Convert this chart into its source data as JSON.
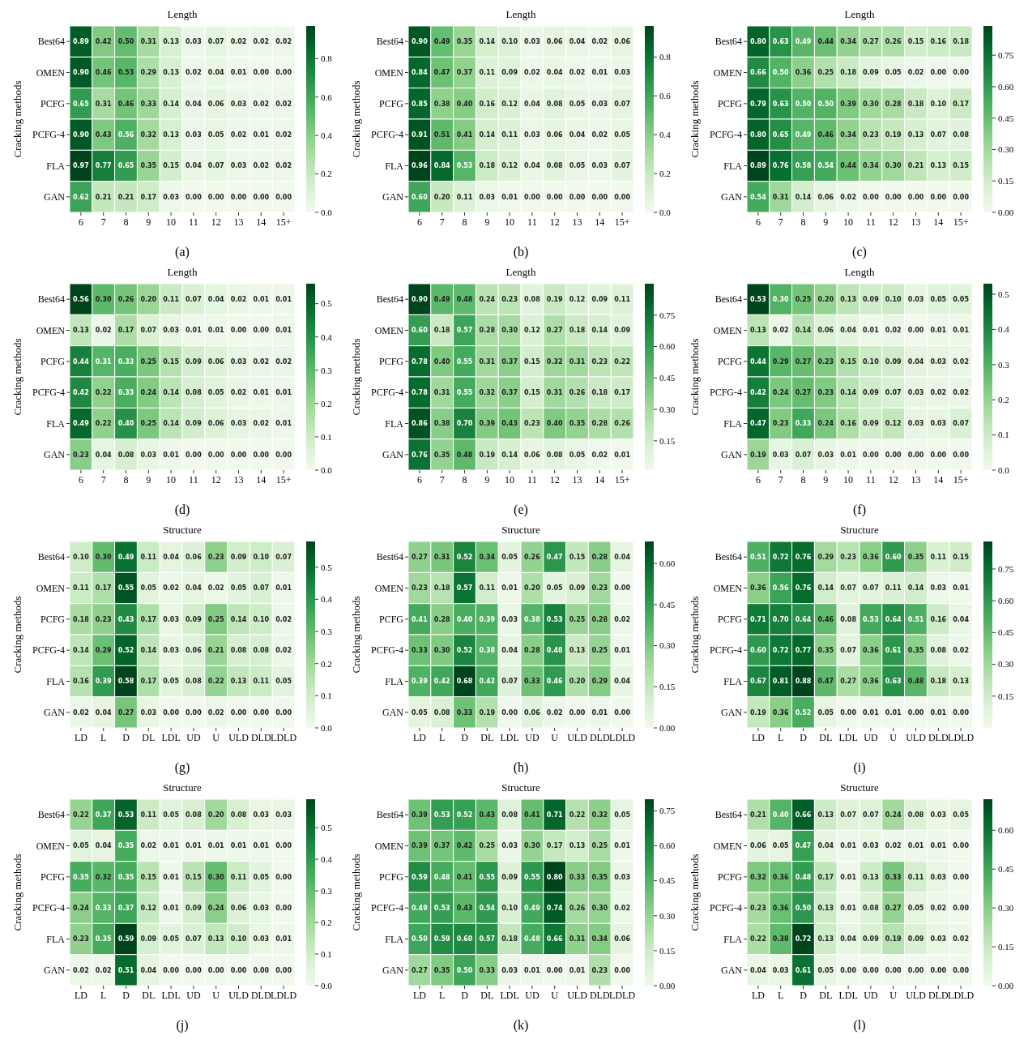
{
  "chart_data": [
    {
      "type": "heatmap",
      "title": "Length",
      "ylabel": "Cracking methods",
      "annotations": [
        "(a)"
      ],
      "data_labels": true,
      "categories": [
        "6",
        "7",
        "8",
        "9",
        "10",
        "11",
        "12",
        "13",
        "14",
        "15+"
      ],
      "y_categories": [
        "Best64",
        "OMEN",
        "PCFG",
        "PCFG-4",
        "FLA",
        "GAN"
      ],
      "clim": [
        0,
        0.97
      ],
      "cticks": [
        {
          "value": 0,
          "label": "0.0"
        },
        0.2,
        0.4,
        0.6,
        0.8
      ],
      "cells": [
        [
          0.89,
          0.42,
          0.5,
          0.31,
          0.13,
          0.03,
          0.07,
          0.02,
          0.02,
          0.02
        ],
        [
          0.9,
          0.46,
          0.53,
          0.29,
          0.13,
          0.02,
          0.04,
          0.01,
          0.0,
          0.0
        ],
        [
          0.65,
          0.31,
          0.46,
          0.33,
          0.14,
          0.04,
          0.06,
          0.03,
          0.02,
          0.02
        ],
        [
          0.9,
          0.43,
          0.56,
          0.32,
          0.13,
          0.03,
          0.05,
          0.02,
          0.01,
          0.02
        ],
        [
          0.97,
          0.77,
          0.65,
          0.35,
          0.15,
          0.04,
          0.07,
          0.03,
          0.02,
          0.02
        ],
        [
          0.62,
          0.21,
          0.21,
          0.17,
          0.03,
          0.0,
          0.0,
          0.0,
          0.0,
          0.0
        ]
      ],
      "cell_labels": [
        [
          "0.89",
          "0.42",
          "0.50",
          "0.31",
          "0.13",
          "0.03",
          "0.07",
          "0.02",
          "0.02",
          "0.02"
        ],
        [
          "0.90",
          "0.46",
          "0.53",
          "0.29",
          "0.13",
          "0.02",
          "0.04",
          "0.01",
          "0.00",
          "0.00"
        ],
        [
          "0.65",
          "0.31",
          "0.46",
          "0.33",
          "0.14",
          "0.04",
          "0.06",
          "0.03",
          "0.02",
          "0.02"
        ],
        [
          "0.90",
          "0.43",
          "0.56",
          "0.32",
          "0.13",
          "0.03",
          "0.05",
          "0.02",
          "0.01",
          "0.02"
        ],
        [
          "0.97",
          "0.77",
          "0.65",
          "0.35",
          "0.15",
          "0.04",
          "0.07",
          "0.03",
          "0.02",
          "0.02"
        ],
        [
          "0.62",
          "0.21",
          "0.21",
          "0.17",
          "0.03",
          "0.00",
          "0.00",
          "0.00",
          "0.00",
          "0.00"
        ]
      ]
    },
    {
      "type": "heatmap",
      "title": "Length",
      "ylabel": "Cracking methods",
      "annotations": [
        "(b)"
      ],
      "data_labels": true,
      "categories": [
        "6",
        "7",
        "8",
        "9",
        "10",
        "11",
        "12",
        "13",
        "14",
        "15+"
      ],
      "y_categories": [
        "Best64",
        "OMEN",
        "PCFG",
        "PCFG-4",
        "FLA",
        "GAN"
      ],
      "clim": [
        0,
        0.96
      ],
      "cticks": [
        {
          "value": 0,
          "label": "0.0"
        },
        0.2,
        0.4,
        0.6,
        0.8
      ],
      "cells": [
        [
          0.9,
          0.49,
          0.35,
          0.14,
          0.1,
          0.03,
          0.06,
          0.04,
          0.02,
          0.06
        ],
        [
          0.84,
          0.47,
          0.37,
          0.11,
          0.09,
          0.02,
          0.04,
          0.02,
          0.01,
          0.03
        ],
        [
          0.85,
          0.38,
          0.4,
          0.16,
          0.12,
          0.04,
          0.08,
          0.05,
          0.03,
          0.07
        ],
        [
          0.91,
          0.51,
          0.41,
          0.14,
          0.11,
          0.03,
          0.06,
          0.04,
          0.02,
          0.05
        ],
        [
          0.96,
          0.84,
          0.53,
          0.18,
          0.12,
          0.04,
          0.08,
          0.05,
          0.03,
          0.07
        ],
        [
          0.6,
          0.2,
          0.11,
          0.03,
          0.01,
          0.0,
          0.0,
          0.0,
          0.0,
          0.0
        ]
      ],
      "cell_labels": [
        [
          "0.90",
          "0.49",
          "0.35",
          "0.14",
          "0.10",
          "0.03",
          "0.06",
          "0.04",
          "0.02",
          "0.06"
        ],
        [
          "0.84",
          "0.47",
          "0.37",
          "0.11",
          "0.09",
          "0.02",
          "0.04",
          "0.02",
          "0.01",
          "0.03"
        ],
        [
          "0.85",
          "0.38",
          "0.40",
          "0.16",
          "0.12",
          "0.04",
          "0.08",
          "0.05",
          "0.03",
          "0.07"
        ],
        [
          "0.91",
          "0.51",
          "0.41",
          "0.14",
          "0.11",
          "0.03",
          "0.06",
          "0.04",
          "0.02",
          "0.05"
        ],
        [
          "0.96",
          "0.84",
          "0.53",
          "0.18",
          "0.12",
          "0.04",
          "0.08",
          "0.05",
          "0.03",
          "0.07"
        ],
        [
          "0.60",
          "0.20",
          "0.11",
          "0.03",
          "0.01",
          "0.00",
          "0.00",
          "0.00",
          "0.00",
          "0.00"
        ]
      ]
    },
    {
      "type": "heatmap",
      "title": "Length",
      "ylabel": "Cracking methods",
      "annotations": [
        "(c)"
      ],
      "data_labels": true,
      "categories": [
        "6",
        "7",
        "8",
        "9",
        "10",
        "11",
        "12",
        "13",
        "14",
        "15+"
      ],
      "y_categories": [
        "Best64",
        "OMEN",
        "PCFG",
        "PCFG-4",
        "FLA",
        "GAN"
      ],
      "clim": [
        0,
        0.89
      ],
      "cticks": [
        {
          "value": 0,
          "label": "0.00"
        },
        0.15,
        {
          "value": 0.3,
          "label": "0.30"
        },
        0.45,
        {
          "value": 0.6,
          "label": "0.60"
        },
        0.75
      ],
      "cells": [
        [
          0.8,
          0.63,
          0.49,
          0.44,
          0.34,
          0.27,
          0.26,
          0.15,
          0.16,
          0.18
        ],
        [
          0.66,
          0.5,
          0.36,
          0.25,
          0.18,
          0.09,
          0.05,
          0.02,
          0.0,
          0.0
        ],
        [
          0.79,
          0.63,
          0.5,
          0.5,
          0.39,
          0.3,
          0.28,
          0.18,
          0.1,
          0.17
        ],
        [
          0.8,
          0.65,
          0.49,
          0.46,
          0.34,
          0.23,
          0.19,
          0.13,
          0.07,
          0.08
        ],
        [
          0.89,
          0.76,
          0.58,
          0.54,
          0.44,
          0.34,
          0.3,
          0.21,
          0.13,
          0.15
        ],
        [
          0.54,
          0.31,
          0.14,
          0.06,
          0.02,
          0.0,
          0.0,
          0.0,
          0.0,
          0.0
        ]
      ],
      "cell_labels": [
        [
          "0.80",
          "0.63",
          "0.49",
          "0.44",
          "0.34",
          "0.27",
          "0.26",
          "0.15",
          "0.16",
          "0.18"
        ],
        [
          "0.66",
          "0.50",
          "0.36",
          "0.25",
          "0.18",
          "0.09",
          "0.05",
          "0.02",
          "0.00",
          "0.00"
        ],
        [
          "0.79",
          "0.63",
          "0.50",
          "0.50",
          "0.39",
          "0.30",
          "0.28",
          "0.18",
          "0.10",
          "0.17"
        ],
        [
          "0.80",
          "0.65",
          "0.49",
          "0.46",
          "0.34",
          "0.23",
          "0.19",
          "0.13",
          "0.07",
          "0.08"
        ],
        [
          "0.89",
          "0.76",
          "0.58",
          "0.54",
          "0.44",
          "0.34",
          "0.30",
          "0.21",
          "0.13",
          "0.15"
        ],
        [
          "0.54",
          "0.31",
          "0.14",
          "0.06",
          "0.02",
          "0.00",
          "0.00",
          "0.00",
          "0.00",
          "0.00"
        ]
      ]
    },
    {
      "type": "heatmap",
      "title": "Length",
      "ylabel": "Cracking methods",
      "annotations": [
        "(d)"
      ],
      "data_labels": true,
      "categories": [
        "6",
        "7",
        "8",
        "9",
        "10",
        "11",
        "12",
        "13",
        "14",
        "15+"
      ],
      "y_categories": [
        "Best64",
        "OMEN",
        "PCFG",
        "PCFG-4",
        "FLA",
        "GAN"
      ],
      "clim": [
        0,
        0.56
      ],
      "cticks": [
        {
          "value": 0,
          "label": "0.0"
        },
        0.1,
        0.2,
        0.3,
        0.4,
        0.5
      ],
      "cells": [
        [
          0.56,
          0.3,
          0.26,
          0.2,
          0.11,
          0.07,
          0.04,
          0.02,
          0.01,
          0.01
        ],
        [
          0.13,
          0.02,
          0.17,
          0.07,
          0.03,
          0.01,
          0.01,
          0.0,
          0.0,
          0.01
        ],
        [
          0.44,
          0.31,
          0.33,
          0.25,
          0.15,
          0.09,
          0.06,
          0.03,
          0.02,
          0.02
        ],
        [
          0.42,
          0.22,
          0.33,
          0.24,
          0.14,
          0.08,
          0.05,
          0.02,
          0.01,
          0.01
        ],
        [
          0.49,
          0.22,
          0.4,
          0.25,
          0.14,
          0.09,
          0.06,
          0.03,
          0.02,
          0.01
        ],
        [
          0.23,
          0.04,
          0.08,
          0.03,
          0.01,
          0.0,
          0.0,
          0.0,
          0.0,
          0.0
        ]
      ],
      "cell_labels": [
        [
          "0.56",
          "0.30",
          "0.26",
          "0.20",
          "0.11",
          "0.07",
          "0.04",
          "0.02",
          "0.01",
          "0.01"
        ],
        [
          "0.13",
          "0.02",
          "0.17",
          "0.07",
          "0.03",
          "0.01",
          "0.01",
          "0.00",
          "0.00",
          "0.01"
        ],
        [
          "0.44",
          "0.31",
          "0.33",
          "0.25",
          "0.15",
          "0.09",
          "0.06",
          "0.03",
          "0.02",
          "0.02"
        ],
        [
          "0.42",
          "0.22",
          "0.33",
          "0.24",
          "0.14",
          "0.08",
          "0.05",
          "0.02",
          "0.01",
          "0.01"
        ],
        [
          "0.49",
          "0.22",
          "0.40",
          "0.25",
          "0.14",
          "0.09",
          "0.06",
          "0.03",
          "0.02",
          "0.01"
        ],
        [
          "0.23",
          "0.04",
          "0.08",
          "0.03",
          "0.01",
          "0.00",
          "0.00",
          "0.00",
          "0.00",
          "0.00"
        ]
      ]
    },
    {
      "type": "heatmap",
      "title": "Length",
      "ylabel": "Cracking methods",
      "annotations": [
        "(e)"
      ],
      "data_labels": true,
      "categories": [
        "6",
        "7",
        "8",
        "9",
        "10",
        "11",
        "12",
        "13",
        "14",
        "15+"
      ],
      "y_categories": [
        "Best64",
        "OMEN",
        "PCFG",
        "PCFG-4",
        "FLA",
        "GAN"
      ],
      "clim": [
        0.01,
        0.9
      ],
      "cticks": [
        0.15,
        {
          "value": 0.3,
          "label": "0.30"
        },
        0.45,
        {
          "value": 0.6,
          "label": "0.60"
        },
        0.75
      ],
      "cells": [
        [
          0.9,
          0.49,
          0.48,
          0.24,
          0.23,
          0.08,
          0.19,
          0.12,
          0.09,
          0.11
        ],
        [
          0.6,
          0.18,
          0.57,
          0.28,
          0.3,
          0.12,
          0.27,
          0.18,
          0.14,
          0.09
        ],
        [
          0.78,
          0.4,
          0.55,
          0.31,
          0.37,
          0.15,
          0.32,
          0.31,
          0.23,
          0.22
        ],
        [
          0.78,
          0.31,
          0.55,
          0.32,
          0.37,
          0.15,
          0.31,
          0.26,
          0.18,
          0.17
        ],
        [
          0.86,
          0.38,
          0.7,
          0.39,
          0.43,
          0.23,
          0.4,
          0.35,
          0.28,
          0.26
        ],
        [
          0.76,
          0.35,
          0.48,
          0.19,
          0.14,
          0.06,
          0.08,
          0.05,
          0.02,
          0.01
        ]
      ],
      "cell_labels": [
        [
          "0.90",
          "0.49",
          "0.48",
          "0.24",
          "0.23",
          "0.08",
          "0.19",
          "0.12",
          "0.09",
          "0.11"
        ],
        [
          "0.60",
          "0.18",
          "0.57",
          "0.28",
          "0.30",
          "0.12",
          "0.27",
          "0.18",
          "0.14",
          "0.09"
        ],
        [
          "0.78",
          "0.40",
          "0.55",
          "0.31",
          "0.37",
          "0.15",
          "0.32",
          "0.31",
          "0.23",
          "0.22"
        ],
        [
          "0.78",
          "0.31",
          "0.55",
          "0.32",
          "0.37",
          "0.15",
          "0.31",
          "0.26",
          "0.18",
          "0.17"
        ],
        [
          "0.86",
          "0.38",
          "0.70",
          "0.39",
          "0.43",
          "0.23",
          "0.40",
          "0.35",
          "0.28",
          "0.26"
        ],
        [
          "0.76",
          "0.35",
          "0.48",
          "0.19",
          "0.14",
          "0.06",
          "0.08",
          "0.05",
          "0.02",
          "0.01"
        ]
      ]
    },
    {
      "type": "heatmap",
      "title": "Length",
      "ylabel": "Cracking methods",
      "annotations": [
        "(f)"
      ],
      "data_labels": true,
      "categories": [
        "6",
        "7",
        "8",
        "9",
        "10",
        "11",
        "12",
        "13",
        "14",
        "15+"
      ],
      "y_categories": [
        "Best64",
        "OMEN",
        "PCFG",
        "PCFG-4",
        "FLA",
        "GAN"
      ],
      "clim": [
        0,
        0.53
      ],
      "cticks": [
        {
          "value": 0,
          "label": "0.0"
        },
        0.1,
        0.2,
        0.3,
        0.4,
        0.5
      ],
      "cells": [
        [
          0.53,
          0.3,
          0.25,
          0.2,
          0.13,
          0.09,
          0.1,
          0.03,
          0.05,
          0.05
        ],
        [
          0.13,
          0.02,
          0.14,
          0.06,
          0.04,
          0.01,
          0.02,
          0.0,
          0.01,
          0.01
        ],
        [
          0.44,
          0.29,
          0.27,
          0.23,
          0.15,
          0.1,
          0.09,
          0.04,
          0.03,
          0.02
        ],
        [
          0.42,
          0.24,
          0.27,
          0.23,
          0.14,
          0.09,
          0.07,
          0.03,
          0.02,
          0.02
        ],
        [
          0.47,
          0.23,
          0.33,
          0.24,
          0.16,
          0.09,
          0.12,
          0.03,
          0.03,
          0.07
        ],
        [
          0.19,
          0.03,
          0.07,
          0.03,
          0.01,
          0.0,
          0.0,
          0.0,
          0.0,
          0.0
        ]
      ],
      "cell_labels": [
        [
          "0.53",
          "0.30",
          "0.25",
          "0.20",
          "0.13",
          "0.09",
          "0.10",
          "0.03",
          "0.05",
          "0.05"
        ],
        [
          "0.13",
          "0.02",
          "0.14",
          "0.06",
          "0.04",
          "0.01",
          "0.02",
          "0.00",
          "0.01",
          "0.01"
        ],
        [
          "0.44",
          "0.29",
          "0.27",
          "0.23",
          "0.15",
          "0.10",
          "0.09",
          "0.04",
          "0.03",
          "0.02"
        ],
        [
          "0.42",
          "0.24",
          "0.27",
          "0.23",
          "0.14",
          "0.09",
          "0.07",
          "0.03",
          "0.02",
          "0.02"
        ],
        [
          "0.47",
          "0.23",
          "0.33",
          "0.24",
          "0.16",
          "0.09",
          "0.12",
          "0.03",
          "0.03",
          "0.07"
        ],
        [
          "0.19",
          "0.03",
          "0.07",
          "0.03",
          "0.01",
          "0.00",
          "0.00",
          "0.00",
          "0.00",
          "0.00"
        ]
      ]
    },
    {
      "type": "heatmap",
      "title": "Structure",
      "ylabel": "Cracking methods",
      "annotations": [
        "(g)"
      ],
      "data_labels": true,
      "categories": [
        "LD",
        "L",
        "D",
        "DL",
        "LDL",
        "UD",
        "U",
        "ULD",
        "DLD",
        "LDLD"
      ],
      "y_categories": [
        "Best64",
        "OMEN",
        "PCFG",
        "PCFG-4",
        "FLA",
        "GAN"
      ],
      "clim": [
        0,
        0.58
      ],
      "cticks": [
        {
          "value": 0,
          "label": "0.0"
        },
        0.1,
        0.2,
        0.3,
        0.4,
        0.5
      ],
      "cells": [
        [
          0.1,
          0.3,
          0.49,
          0.11,
          0.04,
          0.06,
          0.23,
          0.09,
          0.1,
          0.07
        ],
        [
          0.11,
          0.17,
          0.55,
          0.05,
          0.02,
          0.04,
          0.02,
          0.05,
          0.07,
          0.01
        ],
        [
          0.18,
          0.23,
          0.43,
          0.17,
          0.03,
          0.09,
          0.25,
          0.14,
          0.1,
          0.02
        ],
        [
          0.14,
          0.29,
          0.52,
          0.14,
          0.03,
          0.06,
          0.21,
          0.08,
          0.08,
          0.02
        ],
        [
          0.16,
          0.39,
          0.58,
          0.17,
          0.05,
          0.08,
          0.22,
          0.13,
          0.11,
          0.05
        ],
        [
          0.02,
          0.04,
          0.27,
          0.03,
          0.0,
          0.0,
          0.02,
          0.0,
          0.0,
          0.0
        ]
      ],
      "cell_labels": [
        [
          "0.10",
          "0.30",
          "0.49",
          "0.11",
          "0.04",
          "0.06",
          "0.23",
          "0.09",
          "0.10",
          "0.07"
        ],
        [
          "0.11",
          "0.17",
          "0.55",
          "0.05",
          "0.02",
          "0.04",
          "0.02",
          "0.05",
          "0.07",
          "0.01"
        ],
        [
          "0.18",
          "0.23",
          "0.43",
          "0.17",
          "0.03",
          "0.09",
          "0.25",
          "0.14",
          "0.10",
          "0.02"
        ],
        [
          "0.14",
          "0.29",
          "0.52",
          "0.14",
          "0.03",
          "0.06",
          "0.21",
          "0.08",
          "0.08",
          "0.02"
        ],
        [
          "0.16",
          "0.39",
          "0.58",
          "0.17",
          "0.05",
          "0.08",
          "0.22",
          "0.13",
          "0.11",
          "0.05"
        ],
        [
          "0.02",
          "0.04",
          "0.27",
          "0.03",
          "0.00",
          "0.00",
          "0.02",
          "0.00",
          "0.00",
          "0.00"
        ]
      ]
    },
    {
      "type": "heatmap",
      "title": "Structure",
      "ylabel": "Cracking methods",
      "annotations": [
        "(h)"
      ],
      "data_labels": true,
      "categories": [
        "LD",
        "L",
        "D",
        "DL",
        "LDL",
        "UD",
        "U",
        "ULD",
        "DLD",
        "LDLD"
      ],
      "y_categories": [
        "Best64",
        "OMEN",
        "PCFG",
        "PCFG-4",
        "FLA",
        "GAN"
      ],
      "clim": [
        0,
        0.68
      ],
      "cticks": [
        {
          "value": 0,
          "label": "0.00"
        },
        0.15,
        {
          "value": 0.3,
          "label": "0.30"
        },
        0.45,
        {
          "value": 0.6,
          "label": "0.60"
        }
      ],
      "cells": [
        [
          0.27,
          0.31,
          0.52,
          0.34,
          0.05,
          0.26,
          0.47,
          0.15,
          0.28,
          0.04
        ],
        [
          0.23,
          0.18,
          0.57,
          0.11,
          0.01,
          0.2,
          0.05,
          0.09,
          0.23,
          0.0
        ],
        [
          0.41,
          0.28,
          0.4,
          0.39,
          0.03,
          0.38,
          0.53,
          0.25,
          0.28,
          0.02
        ],
        [
          0.33,
          0.3,
          0.52,
          0.38,
          0.04,
          0.28,
          0.48,
          0.13,
          0.25,
          0.01
        ],
        [
          0.39,
          0.42,
          0.68,
          0.42,
          0.07,
          0.33,
          0.46,
          0.2,
          0.29,
          0.04
        ],
        [
          0.05,
          0.08,
          0.33,
          0.19,
          0.0,
          0.06,
          0.02,
          0.0,
          0.01,
          0.0
        ]
      ],
      "cell_labels": [
        [
          "0.27",
          "0.31",
          "0.52",
          "0.34",
          "0.05",
          "0.26",
          "0.47",
          "0.15",
          "0.28",
          "0.04"
        ],
        [
          "0.23",
          "0.18",
          "0.57",
          "0.11",
          "0.01",
          "0.20",
          "0.05",
          "0.09",
          "0.23",
          "0.00"
        ],
        [
          "0.41",
          "0.28",
          "0.40",
          "0.39",
          "0.03",
          "0.38",
          "0.53",
          "0.25",
          "0.28",
          "0.02"
        ],
        [
          "0.33",
          "0.30",
          "0.52",
          "0.38",
          "0.04",
          "0.28",
          "0.48",
          "0.13",
          "0.25",
          "0.01"
        ],
        [
          "0.39",
          "0.42",
          "0.68",
          "0.42",
          "0.07",
          "0.33",
          "0.46",
          "0.20",
          "0.29",
          "0.04"
        ],
        [
          "0.05",
          "0.08",
          "0.33",
          "0.19",
          "0.00",
          "0.06",
          "0.02",
          "0.00",
          "0.01",
          "0.00"
        ]
      ]
    },
    {
      "type": "heatmap",
      "title": "Structure",
      "ylabel": "Cracking methods",
      "annotations": [
        "(i)"
      ],
      "data_labels": true,
      "categories": [
        "LD",
        "L",
        "D",
        "DL",
        "LDL",
        "UD",
        "U",
        "ULD",
        "DLD",
        "LDLD"
      ],
      "y_categories": [
        "Best64",
        "OMEN",
        "PCFG",
        "PCFG-4",
        "FLA",
        "GAN"
      ],
      "clim": [
        0,
        0.88
      ],
      "cticks": [
        0.15,
        {
          "value": 0.3,
          "label": "0.30"
        },
        0.45,
        {
          "value": 0.6,
          "label": "0.60"
        },
        0.75
      ],
      "cells": [
        [
          0.51,
          0.72,
          0.76,
          0.29,
          0.23,
          0.36,
          0.6,
          0.35,
          0.11,
          0.15
        ],
        [
          0.36,
          0.56,
          0.76,
          0.14,
          0.07,
          0.07,
          0.11,
          0.14,
          0.03,
          0.01
        ],
        [
          0.71,
          0.7,
          0.64,
          0.46,
          0.08,
          0.53,
          0.64,
          0.51,
          0.16,
          0.04
        ],
        [
          0.6,
          0.72,
          0.77,
          0.35,
          0.07,
          0.36,
          0.61,
          0.35,
          0.08,
          0.02
        ],
        [
          0.67,
          0.81,
          0.88,
          0.47,
          0.27,
          0.36,
          0.63,
          0.48,
          0.18,
          0.13
        ],
        [
          0.19,
          0.36,
          0.52,
          0.05,
          0.0,
          0.01,
          0.01,
          0.0,
          0.01,
          0.0
        ]
      ],
      "cell_labels": [
        [
          "0.51",
          "0.72",
          "0.76",
          "0.29",
          "0.23",
          "0.36",
          "0.60",
          "0.35",
          "0.11",
          "0.15"
        ],
        [
          "0.36",
          "0.56",
          "0.76",
          "0.14",
          "0.07",
          "0.07",
          "0.11",
          "0.14",
          "0.03",
          "0.01"
        ],
        [
          "0.71",
          "0.70",
          "0.64",
          "0.46",
          "0.08",
          "0.53",
          "0.64",
          "0.51",
          "0.16",
          "0.04"
        ],
        [
          "0.60",
          "0.72",
          "0.77",
          "0.35",
          "0.07",
          "0.36",
          "0.61",
          "0.35",
          "0.08",
          "0.02"
        ],
        [
          "0.67",
          "0.81",
          "0.88",
          "0.47",
          "0.27",
          "0.36",
          "0.63",
          "0.48",
          "0.18",
          "0.13"
        ],
        [
          "0.19",
          "0.36",
          "0.52",
          "0.05",
          "0.00",
          "0.01",
          "0.01",
          "0.00",
          "0.01",
          "0.00"
        ]
      ]
    },
    {
      "type": "heatmap",
      "title": "Structure",
      "ylabel": "Cracking methods",
      "annotations": [
        "(j)"
      ],
      "data_labels": true,
      "categories": [
        "LD",
        "L",
        "D",
        "DL",
        "LDL",
        "UD",
        "U",
        "ULD",
        "DLD",
        "LDLD"
      ],
      "y_categories": [
        "Best64",
        "OMEN",
        "PCFG",
        "PCFG-4",
        "FLA",
        "GAN"
      ],
      "clim": [
        0,
        0.59
      ],
      "cticks": [
        {
          "value": 0,
          "label": "0.0"
        },
        0.1,
        0.2,
        0.3,
        0.4,
        0.5
      ],
      "cells": [
        [
          0.22,
          0.37,
          0.53,
          0.11,
          0.05,
          0.08,
          0.2,
          0.08,
          0.03,
          0.03
        ],
        [
          0.05,
          0.04,
          0.35,
          0.02,
          0.01,
          0.01,
          0.01,
          0.01,
          0.01,
          0.0
        ],
        [
          0.35,
          0.32,
          0.35,
          0.15,
          0.01,
          0.15,
          0.3,
          0.11,
          0.05,
          0.0
        ],
        [
          0.24,
          0.33,
          0.37,
          0.12,
          0.01,
          0.09,
          0.24,
          0.06,
          0.03,
          0.0
        ],
        [
          0.23,
          0.35,
          0.59,
          0.09,
          0.05,
          0.07,
          0.13,
          0.1,
          0.03,
          0.01
        ],
        [
          0.02,
          0.02,
          0.51,
          0.04,
          0.0,
          0.0,
          0.0,
          0.0,
          0.0,
          0.0
        ]
      ],
      "cell_labels": [
        [
          "0.22",
          "0.37",
          "0.53",
          "0.11",
          "0.05",
          "0.08",
          "0.20",
          "0.08",
          "0.03",
          "0.03"
        ],
        [
          "0.05",
          "0.04",
          "0.35",
          "0.02",
          "0.01",
          "0.01",
          "0.01",
          "0.01",
          "0.01",
          "0.00"
        ],
        [
          "0.35",
          "0.32",
          "0.35",
          "0.15",
          "0.01",
          "0.15",
          "0.30",
          "0.11",
          "0.05",
          "0.00"
        ],
        [
          "0.24",
          "0.33",
          "0.37",
          "0.12",
          "0.01",
          "0.09",
          "0.24",
          "0.06",
          "0.03",
          "0.00"
        ],
        [
          "0.23",
          "0.35",
          "0.59",
          "0.09",
          "0.05",
          "0.07",
          "0.13",
          "0.10",
          "0.03",
          "0.01"
        ],
        [
          "0.02",
          "0.02",
          "0.51",
          "0.04",
          "0.00",
          "0.00",
          "0.00",
          "0.00",
          "0.00",
          "0.00"
        ]
      ]
    },
    {
      "type": "heatmap",
      "title": "Structure",
      "ylabel": "Cracking methods",
      "annotations": [
        "(k)"
      ],
      "data_labels": true,
      "categories": [
        "LD",
        "L",
        "D",
        "DL",
        "LDL",
        "UD",
        "U",
        "ULD",
        "DLD",
        "LDLD"
      ],
      "y_categories": [
        "Best64",
        "OMEN",
        "PCFG",
        "PCFG-4",
        "FLA",
        "GAN"
      ],
      "clim": [
        0,
        0.8
      ],
      "cticks": [
        {
          "value": 0,
          "label": "0.00"
        },
        0.15,
        {
          "value": 0.3,
          "label": "0.30"
        },
        0.45,
        {
          "value": 0.6,
          "label": "0.60"
        },
        0.75
      ],
      "cells": [
        [
          0.39,
          0.53,
          0.52,
          0.43,
          0.08,
          0.41,
          0.71,
          0.22,
          0.32,
          0.05
        ],
        [
          0.39,
          0.37,
          0.42,
          0.25,
          0.03,
          0.3,
          0.17,
          0.13,
          0.25,
          0.01
        ],
        [
          0.59,
          0.48,
          0.41,
          0.55,
          0.09,
          0.55,
          0.8,
          0.33,
          0.35,
          0.03
        ],
        [
          0.49,
          0.53,
          0.43,
          0.54,
          0.1,
          0.49,
          0.74,
          0.26,
          0.3,
          0.02
        ],
        [
          0.5,
          0.59,
          0.6,
          0.57,
          0.18,
          0.48,
          0.66,
          0.31,
          0.34,
          0.06
        ],
        [
          0.27,
          0.35,
          0.5,
          0.33,
          0.03,
          0.01,
          0.0,
          0.01,
          0.23,
          0.0
        ]
      ],
      "cell_labels": [
        [
          "0.39",
          "0.53",
          "0.52",
          "0.43",
          "0.08",
          "0.41",
          "0.71",
          "0.22",
          "0.32",
          "0.05"
        ],
        [
          "0.39",
          "0.37",
          "0.42",
          "0.25",
          "0.03",
          "0.30",
          "0.17",
          "0.13",
          "0.25",
          "0.01"
        ],
        [
          "0.59",
          "0.48",
          "0.41",
          "0.55",
          "0.09",
          "0.55",
          "0.80",
          "0.33",
          "0.35",
          "0.03"
        ],
        [
          "0.49",
          "0.53",
          "0.43",
          "0.54",
          "0.10",
          "0.49",
          "0.74",
          "0.26",
          "0.30",
          "0.02"
        ],
        [
          "0.50",
          "0.59",
          "0.60",
          "0.57",
          "0.18",
          "0.48",
          "0.66",
          "0.31",
          "0.34",
          "0.06"
        ],
        [
          "0.27",
          "0.35",
          "0.50",
          "0.33",
          "0.03",
          "0.01",
          "0.00",
          "0.01",
          "0.23",
          "0.00"
        ]
      ]
    },
    {
      "type": "heatmap",
      "title": "Structure",
      "ylabel": "Cracking methods",
      "annotations": [
        "(l)"
      ],
      "data_labels": true,
      "categories": [
        "LD",
        "L",
        "D",
        "DL",
        "LDL",
        "UD",
        "U",
        "ULD",
        "DLD",
        "LDLD"
      ],
      "y_categories": [
        "Best64",
        "OMEN",
        "PCFG",
        "PCFG-4",
        "FLA",
        "GAN"
      ],
      "clim": [
        0,
        0.72
      ],
      "cticks": [
        {
          "value": 0,
          "label": "0.00"
        },
        0.15,
        {
          "value": 0.3,
          "label": "0.30"
        },
        0.45,
        {
          "value": 0.6,
          "label": "0.60"
        }
      ],
      "cells": [
        [
          0.21,
          0.4,
          0.66,
          0.13,
          0.07,
          0.07,
          0.24,
          0.08,
          0.03,
          0.05
        ],
        [
          0.06,
          0.05,
          0.47,
          0.04,
          0.01,
          0.03,
          0.02,
          0.01,
          0.01,
          0.0
        ],
        [
          0.32,
          0.36,
          0.48,
          0.17,
          0.01,
          0.13,
          0.33,
          0.11,
          0.03,
          0.0
        ],
        [
          0.23,
          0.36,
          0.5,
          0.13,
          0.01,
          0.08,
          0.27,
          0.05,
          0.02,
          0.0
        ],
        [
          0.22,
          0.38,
          0.72,
          0.13,
          0.04,
          0.09,
          0.19,
          0.09,
          0.03,
          0.02
        ],
        [
          0.04,
          0.03,
          0.61,
          0.05,
          0.0,
          0.0,
          0.0,
          0.0,
          0.0,
          0.0
        ]
      ],
      "cell_labels": [
        [
          "0.21",
          "0.40",
          "0.66",
          "0.13",
          "0.07",
          "0.07",
          "0.24",
          "0.08",
          "0.03",
          "0.05"
        ],
        [
          "0.06",
          "0.05",
          "0.47",
          "0.04",
          "0.01",
          "0.03",
          "0.02",
          "0.01",
          "0.01",
          "0.00"
        ],
        [
          "0.32",
          "0.36",
          "0.48",
          "0.17",
          "0.01",
          "0.13",
          "0.33",
          "0.11",
          "0.03",
          "0.00"
        ],
        [
          "0.23",
          "0.36",
          "0.50",
          "0.13",
          "0.01",
          "0.08",
          "0.27",
          "0.05",
          "0.02",
          "0.00"
        ],
        [
          "0.22",
          "0.38",
          "0.72",
          "0.13",
          "0.04",
          "0.09",
          "0.19",
          "0.09",
          "0.03",
          "0.02"
        ],
        [
          "0.04",
          "0.03",
          "0.61",
          "0.05",
          "0.00",
          "0.00",
          "0.00",
          "0.00",
          "0.00",
          "0.00"
        ]
      ]
    }
  ]
}
